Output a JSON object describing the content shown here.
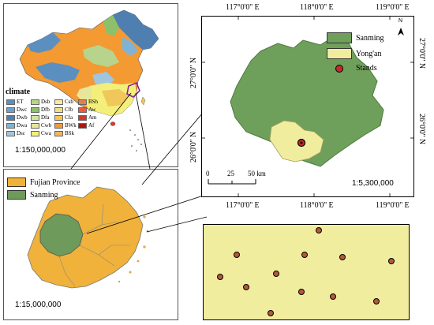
{
  "china_map": {
    "legend_title": "climate",
    "climate_classes": [
      {
        "code": "ET",
        "color": "#5b8fbf"
      },
      {
        "code": "Dwc",
        "color": "#6aa2c9"
      },
      {
        "code": "Dwb",
        "color": "#4f7fb0"
      },
      {
        "code": "Dwa",
        "color": "#7fb3d6"
      },
      {
        "code": "Dsc",
        "color": "#9fc5df"
      },
      {
        "code": "Dsb",
        "color": "#b8d38b"
      },
      {
        "code": "Dfb",
        "color": "#8cc06a"
      },
      {
        "code": "Dfa",
        "color": "#cfe5a2"
      },
      {
        "code": "Cwb",
        "color": "#e8e69a"
      },
      {
        "code": "Cwa",
        "color": "#f3ef7a"
      },
      {
        "code": "Csb",
        "color": "#f7e9a3"
      },
      {
        "code": "Cfb",
        "color": "#f3de84"
      },
      {
        "code": "Cfa",
        "color": "#f0c75a"
      },
      {
        "code": "BWk",
        "color": "#f29a3a"
      },
      {
        "code": "BSk",
        "color": "#f6b35b"
      },
      {
        "code": "BSh",
        "color": "#e57f4a"
      },
      {
        "code": "Aw",
        "color": "#ef5a3a"
      },
      {
        "code": "Am",
        "color": "#d23a2a"
      },
      {
        "code": "Af",
        "color": "#b3140f"
      }
    ],
    "scale": "1:150,000,000"
  },
  "fujian_map": {
    "legend": [
      {
        "label": "Fujian Province",
        "color": "#f0b23a"
      },
      {
        "label": "Sanming",
        "color": "#6e9a5c"
      }
    ],
    "scale": "1:15,000,000"
  },
  "sanming_map": {
    "top_coords": [
      "117°0'0'' E",
      "118°0'0'' E",
      "119°0'0'' E"
    ],
    "bottom_coords": [
      "117°0'0'' E",
      "118°0'0'' E",
      "119°0'0'' E"
    ],
    "left_coords": [
      "27°0'0'' N",
      "26°0'0'' N"
    ],
    "right_coords": [
      "27°0'0'' N",
      "26°0'0'' N"
    ],
    "legend": [
      {
        "label": "Sanming",
        "color": "#6fa05b"
      },
      {
        "label": "Yong'an",
        "color": "#f1ed9f"
      },
      {
        "label": "Stands",
        "color": "#c62828"
      }
    ],
    "north_label": "N",
    "scalebar_labels": [
      "0",
      "25",
      "50 km"
    ],
    "scale": "1:5,300,000"
  },
  "stands_map": {
    "stand_count": 12
  }
}
